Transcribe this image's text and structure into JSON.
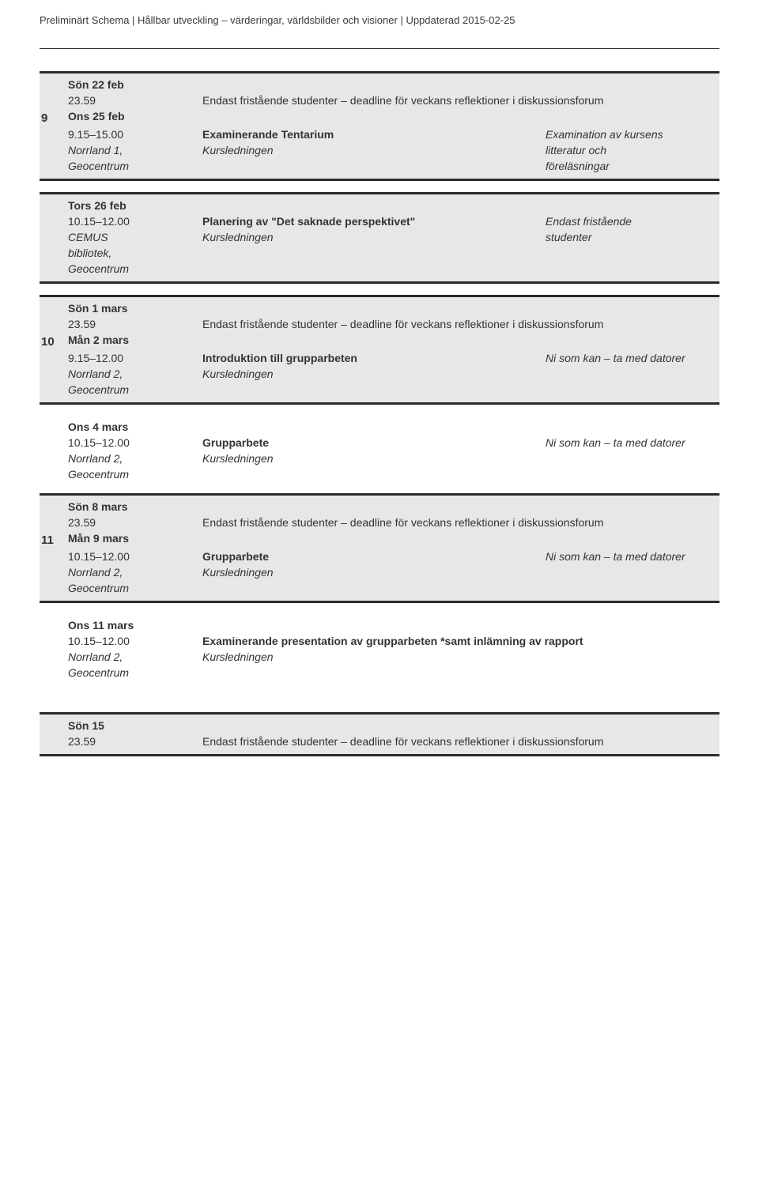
{
  "header": {
    "left": "Preliminärt Schema",
    "mid": "Hållbar utveckling – värderingar, världsbilder och visioner",
    "right": "Uppdaterad 2015-02-25",
    "sep": " | "
  },
  "deadline_text": "Endast fristående studenter – deadline för veckans reflektioner i diskussionsforum",
  "blocks": [
    {
      "week": "9",
      "rows": [
        {
          "day": "Sön 22 feb",
          "time": "23.59",
          "deadline": true
        },
        {
          "week_label": true,
          "day": "Ons 25 feb",
          "time": "9.15–15.00",
          "loc1": "Norrland 1,",
          "loc2": "Geocentrum",
          "title": "Examinerande Tentarium",
          "sub": "Kursledningen",
          "note1": "Examination av kursens",
          "note2": "litteratur och",
          "note3": "föreläsningar"
        }
      ]
    },
    {
      "rows": [
        {
          "day": "Tors 26 feb",
          "time": "10.15–12.00",
          "loc1": "CEMUS",
          "loc2": "bibliotek,",
          "loc3": "Geocentrum",
          "title": "Planering av \"Det saknade perspektivet\"",
          "sub": "Kursledningen",
          "note1": "Endast fristående",
          "note2": "studenter"
        }
      ]
    },
    {
      "week": "10",
      "rows": [
        {
          "day": "Sön 1 mars",
          "time": "23.59",
          "deadline": true
        },
        {
          "week_label": true,
          "day": "Mån 2 mars",
          "time": "9.15–12.00",
          "loc1": "Norrland 2,",
          "loc2": "Geocentrum",
          "title": "Introduktion till grupparbeten",
          "sub": "Kursledningen",
          "note1": "Ni som kan – ta med datorer"
        }
      ]
    },
    {
      "rows": [
        {
          "day": "Ons 4 mars",
          "time": "10.15–12.00",
          "loc1": "Norrland 2,",
          "loc2": "Geocentrum",
          "title": "Grupparbete",
          "sub": "Kursledningen",
          "note1": "Ni som kan – ta med datorer"
        }
      ]
    },
    {
      "week": "11",
      "rows": [
        {
          "day": "Sön 8 mars",
          "time": "23.59",
          "deadline": true
        },
        {
          "week_label": true,
          "day": "Mån 9 mars",
          "time": "10.15–12.00",
          "loc1": "Norrland 2,",
          "loc2": "Geocentrum",
          "title": "Grupparbete",
          "sub": "Kursledningen",
          "note1": "Ni som kan – ta med datorer"
        }
      ]
    },
    {
      "rows": [
        {
          "day": "Ons 11 mars",
          "time": "10.15–12.00",
          "loc1": "Norrland 2,",
          "loc2": "Geocentrum",
          "title": "Examinerande presentation av grupparbeten *samt inlämning av rapport",
          "sub": "Kursledningen",
          "wide": true
        }
      ]
    },
    {
      "rows": [
        {
          "day": "Sön 15",
          "time": "23.59",
          "deadline": true
        }
      ]
    }
  ]
}
